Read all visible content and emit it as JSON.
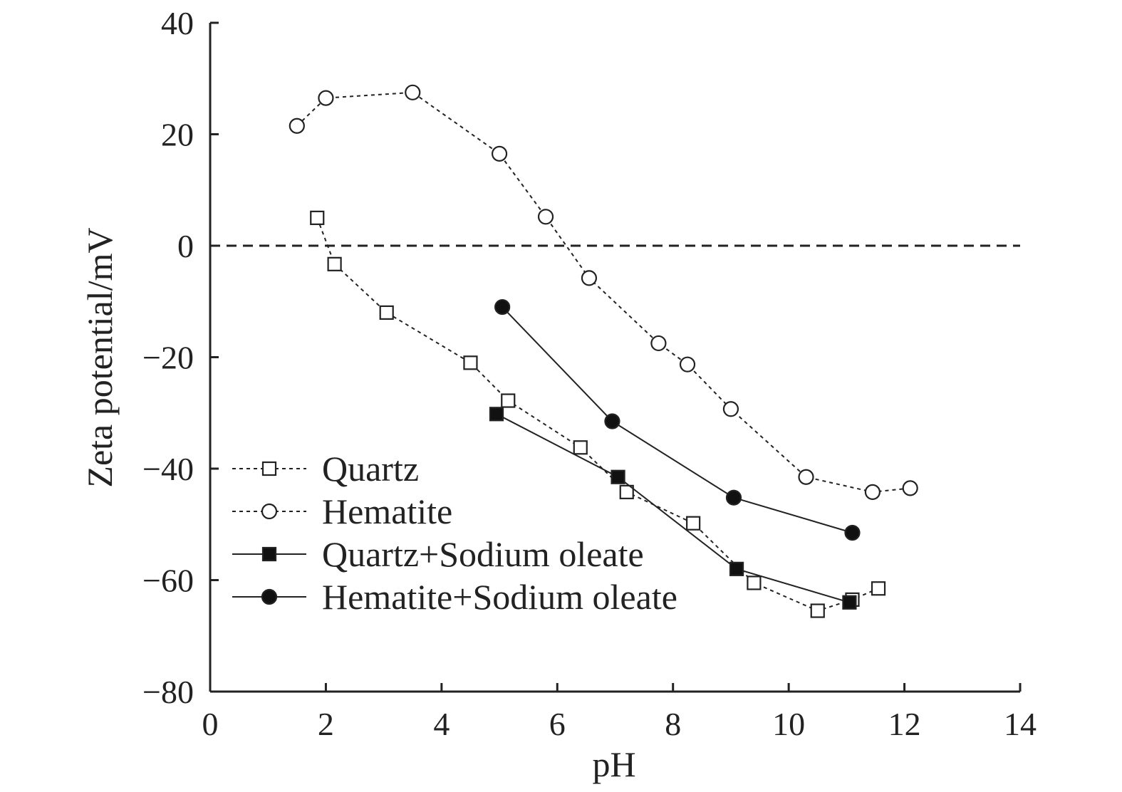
{
  "chart_data": {
    "type": "line",
    "title": "",
    "xlabel": "pH",
    "ylabel": "Zeta potential/mV",
    "xlim": [
      0,
      14
    ],
    "ylim": [
      -80,
      40
    ],
    "xticks": [
      0,
      2,
      4,
      6,
      8,
      10,
      12,
      14
    ],
    "yticks": [
      40,
      20,
      0,
      -20,
      -40,
      -60,
      -80
    ],
    "xtick_labels": [
      "0",
      "2",
      "4",
      "6",
      "8",
      "10",
      "12",
      "14"
    ],
    "ytick_labels": [
      "40",
      "20",
      "0",
      "−20",
      "−40",
      "−60",
      "−80"
    ],
    "grid": false,
    "legend_position": "lower-left",
    "reference_line": {
      "y": 0,
      "style": "dashed"
    },
    "series": [
      {
        "name": "Quartz",
        "marker": "open-square",
        "line": "dotted",
        "x": [
          1.85,
          2.15,
          3.05,
          4.5,
          5.15,
          6.4,
          7.2,
          8.35,
          9.4,
          10.5,
          11.1,
          11.55
        ],
        "y": [
          5,
          -3.3,
          -12,
          -21,
          -27.8,
          -36.2,
          -44.2,
          -49.8,
          -60.5,
          -65.5,
          -63.5,
          -61.5
        ]
      },
      {
        "name": "Hematite",
        "marker": "open-circle",
        "line": "dotted",
        "x": [
          1.5,
          2.0,
          3.5,
          5.0,
          5.8,
          6.55,
          7.75,
          8.25,
          9.0,
          10.3,
          11.45,
          12.1
        ],
        "y": [
          21.5,
          26.5,
          27.5,
          16.5,
          5.2,
          -5.8,
          -17.5,
          -21.3,
          -29.3,
          -41.5,
          -44.2,
          -43.5
        ]
      },
      {
        "name": "Quartz+Sodium oleate",
        "marker": "filled-square",
        "line": "solid",
        "x": [
          4.95,
          7.05,
          9.1,
          11.05
        ],
        "y": [
          -30.2,
          -41.5,
          -58,
          -64
        ]
      },
      {
        "name": "Hematite+Sodium oleate",
        "marker": "filled-circle",
        "line": "solid",
        "x": [
          5.05,
          6.95,
          9.05,
          11.1
        ],
        "y": [
          -11,
          -31.5,
          -45.2,
          -51.5
        ]
      }
    ]
  }
}
